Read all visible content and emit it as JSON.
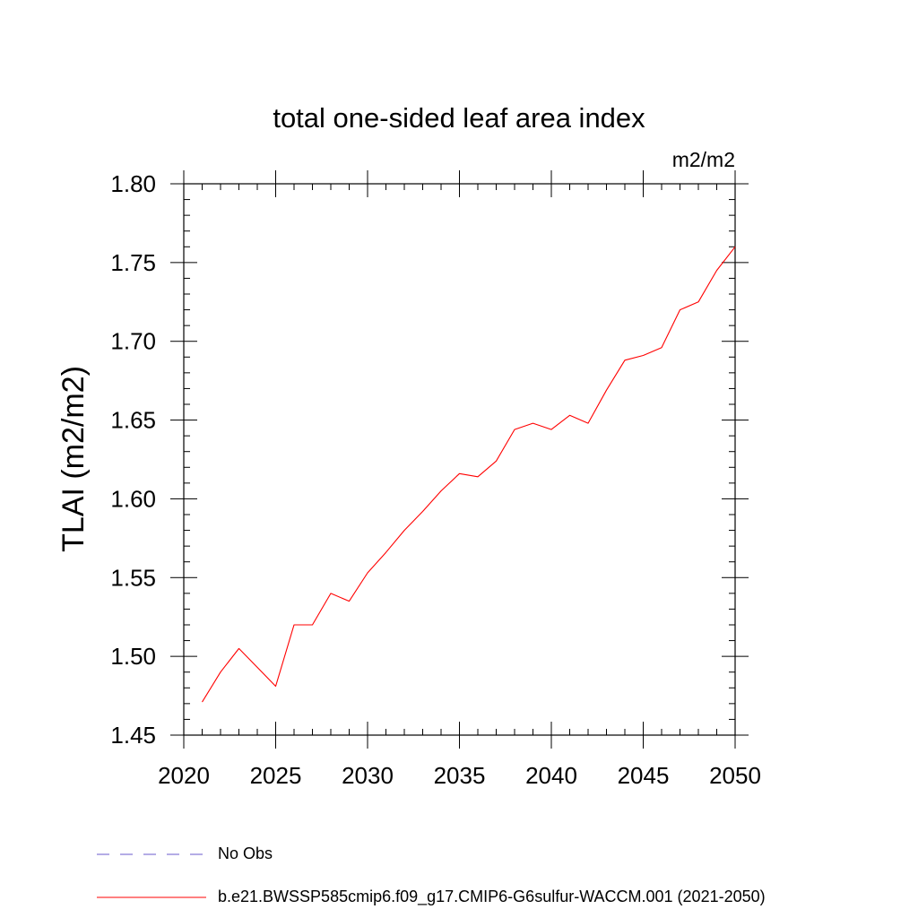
{
  "chart_data": {
    "type": "line",
    "title": "total one-sided leaf area index",
    "units": "m2/m2",
    "ylabel": "TLAI  (m2/m2)",
    "xlabel": "",
    "xlim": [
      2020,
      2050
    ],
    "ylim": [
      1.45,
      1.8
    ],
    "x_ticks": [
      2020,
      2025,
      2030,
      2035,
      2040,
      2045,
      2050
    ],
    "y_ticks": [
      "1.45",
      "1.50",
      "1.55",
      "1.60",
      "1.65",
      "1.70",
      "1.75",
      "1.80"
    ],
    "series": [
      {
        "name": "b.e21.BWSSP585cmip6.f09_g17.CMIP6-G6sulfur-WACCM.001 (2021-2050)",
        "color": "#ff0000",
        "style": "solid",
        "x": [
          2021,
          2022,
          2023,
          2024,
          2025,
          2026,
          2027,
          2028,
          2029,
          2030,
          2031,
          2032,
          2033,
          2034,
          2035,
          2036,
          2037,
          2038,
          2039,
          2040,
          2041,
          2042,
          2043,
          2044,
          2045,
          2046,
          2047,
          2048,
          2049,
          2050
        ],
        "y": [
          1.471,
          1.49,
          1.505,
          1.493,
          1.481,
          1.52,
          1.52,
          1.54,
          1.535,
          1.553,
          1.566,
          1.58,
          1.592,
          1.605,
          1.616,
          1.614,
          1.624,
          1.644,
          1.648,
          1.644,
          1.653,
          1.648,
          1.669,
          1.688,
          1.691,
          1.696,
          1.72,
          1.725,
          1.745,
          1.76
        ]
      }
    ],
    "legend": [
      {
        "label": "No Obs",
        "color": "#6a5acd",
        "style": "dashed"
      },
      {
        "label": "b.e21.BWSSP585cmip6.f09_g17.CMIP6-G6sulfur-WACCM.001 (2021-2050)",
        "color": "#ff0000",
        "style": "solid"
      }
    ],
    "legend_position": "bottom",
    "grid": false
  }
}
